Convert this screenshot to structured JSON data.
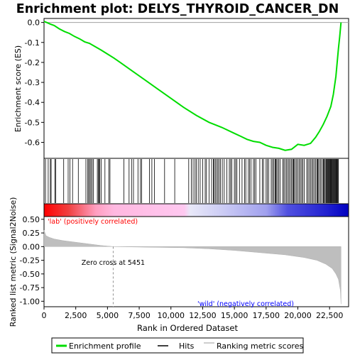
{
  "chart_data": {
    "type": "line",
    "title": "Enrichment plot: DELYS_THYROID_CANCER_DN",
    "panels": {
      "es": {
        "ylabel": "Enrichment score (ES)",
        "ylim": [
          -0.68,
          0.02
        ],
        "yticks": [
          0.0,
          -0.1,
          -0.2,
          -0.3,
          -0.4,
          -0.5,
          -0.6
        ],
        "ytick_labels": [
          "0.0",
          "-0.1",
          "-0.2",
          "-0.3",
          "-0.4",
          "-0.5",
          "-0.6"
        ],
        "series": [
          {
            "name": "Enrichment profile",
            "color": "#00dd00",
            "x": [
              0,
              200,
              500,
              800,
              1200,
              1600,
              2000,
              2400,
              2800,
              3200,
              3600,
              4000,
              4500,
              5000,
              5500,
              6000,
              7000,
              8000,
              9000,
              10000,
              11000,
              12000,
              13000,
              14000,
              15000,
              15500,
              16000,
              16500,
              17000,
              17500,
              18000,
              18500,
              19000,
              19500,
              20000,
              20500,
              21000,
              21400,
              21700,
              22000,
              22300,
              22600,
              22800,
              23000,
              23100,
              23200,
              23300,
              23400
            ],
            "y": [
              0.005,
              0.0,
              -0.008,
              -0.015,
              -0.032,
              -0.045,
              -0.055,
              -0.07,
              -0.082,
              -0.097,
              -0.105,
              -0.12,
              -0.138,
              -0.158,
              -0.178,
              -0.2,
              -0.245,
              -0.29,
              -0.335,
              -0.38,
              -0.425,
              -0.465,
              -0.5,
              -0.525,
              -0.555,
              -0.57,
              -0.585,
              -0.595,
              -0.6,
              -0.615,
              -0.625,
              -0.63,
              -0.64,
              -0.635,
              -0.61,
              -0.615,
              -0.605,
              -0.575,
              -0.545,
              -0.51,
              -0.47,
              -0.42,
              -0.36,
              -0.27,
              -0.2,
              -0.13,
              -0.07,
              0.0
            ]
          }
        ]
      },
      "hits": {
        "legend_label": "Hits",
        "positions": [
          120,
          330,
          500,
          560,
          850,
          930,
          1550,
          1900,
          2050,
          2250,
          2700,
          3300,
          3450,
          3520,
          3620,
          3700,
          3800,
          3900,
          4200,
          4280,
          4350,
          4400,
          4500,
          4800,
          5100,
          5200,
          6300,
          6700,
          6900,
          7050,
          7400,
          7600,
          7700,
          8300,
          8500,
          8700,
          9500,
          10300,
          11400,
          11600,
          11750,
          11900,
          12000,
          12150,
          12300,
          12500,
          12700,
          12800,
          13000,
          13200,
          13350,
          13400,
          13500,
          13600,
          13700,
          13800,
          13900,
          14050,
          14200,
          14400,
          14600,
          14700,
          14800,
          15000,
          15100,
          15200,
          15400,
          15600,
          15800,
          15900,
          16100,
          16200,
          16300,
          16500,
          16600,
          16700,
          17000,
          17200,
          17300,
          17500,
          17600,
          17700,
          17900,
          18000,
          18100,
          18200,
          18250,
          18300,
          18400,
          18500,
          18600,
          18800,
          18900,
          19000,
          19100,
          19200,
          19300,
          19400,
          19500,
          19600,
          19650,
          19700,
          19800,
          19900,
          20000,
          20100,
          20200,
          20300,
          20400,
          20500,
          20700,
          20800,
          20900,
          21000,
          21100,
          21200,
          21300,
          21400,
          21500,
          21550,
          21600,
          21700,
          21800,
          21900,
          22000,
          22050,
          22100,
          22200,
          22250,
          22300,
          22350,
          22400,
          22450,
          22500,
          22550,
          22600,
          22650,
          22700,
          22750,
          22800,
          22850,
          22900,
          22950,
          23000,
          23050,
          23100,
          23150,
          23200
        ]
      },
      "rank_bar": {
        "label_positive": "'lab' (positively correlated)",
        "label_negative": "'wild' (negatively correlated)"
      },
      "metric": {
        "ylabel": "Ranked list metric (Signal2Noise)",
        "ylim": [
          -1.1,
          0.55
        ],
        "yticks": [
          0.5,
          0.25,
          0.0,
          -0.25,
          -0.5,
          -0.75,
          -1.0
        ],
        "ytick_labels": [
          "0.50",
          "0.25",
          "0.00",
          "-0.25",
          "-0.50",
          "-0.75",
          "-1.00"
        ],
        "legend_label": "Ranking metric scores",
        "zero_cross_label": "Zero cross at 5451",
        "zero_cross": 5451,
        "x": [
          0,
          150,
          400,
          800,
          1500,
          2500,
          3500,
          4500,
          5000,
          5451,
          8000,
          11000,
          13000,
          15000,
          17000,
          19000,
          20500,
          21500,
          22200,
          22700,
          23000,
          23200,
          23350,
          23400
        ],
        "y": [
          0.3,
          0.2,
          0.17,
          0.14,
          0.11,
          0.08,
          0.05,
          0.02,
          0.01,
          0.0,
          -0.01,
          -0.02,
          -0.04,
          -0.07,
          -0.11,
          -0.15,
          -0.2,
          -0.25,
          -0.32,
          -0.4,
          -0.5,
          -0.6,
          -0.8,
          -1.05
        ]
      }
    },
    "x_axis": {
      "label": "Rank in Ordered Dataset",
      "xlim": [
        0,
        24000
      ],
      "n_genes": 23400,
      "ticks": [
        0,
        2500,
        5000,
        7500,
        10000,
        12500,
        15000,
        17500,
        20000,
        22500
      ],
      "tick_labels": [
        "0",
        "2,500",
        "5,000",
        "7,500",
        "10,000",
        "12,500",
        "15,000",
        "17,500",
        "20,000",
        "22,500"
      ]
    },
    "legend": {
      "position": "bottom",
      "items": [
        "Enrichment profile",
        "Hits",
        "Ranking metric scores"
      ]
    },
    "colors": {
      "profile": "#00dd00",
      "hits": "#000000",
      "metric": "#bebebe",
      "positive_label": "#ff0000",
      "negative_label": "#0000ff"
    }
  }
}
